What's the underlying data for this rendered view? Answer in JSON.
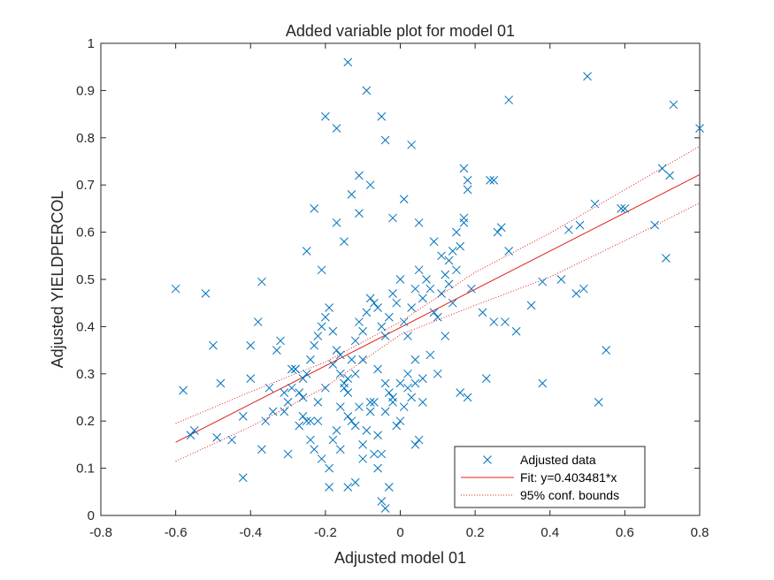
{
  "chart_data": {
    "type": "scatter",
    "title": "Added variable plot for model 01",
    "xlabel": "Adjusted model 01",
    "ylabel": "Adjusted YIELDPERCOL",
    "xlim": [
      -0.8,
      0.8
    ],
    "ylim": [
      0,
      1
    ],
    "xticks": [
      -0.8,
      -0.6,
      -0.4,
      -0.2,
      0,
      0.2,
      0.4,
      0.6,
      0.8
    ],
    "xtick_labels": [
      "-0.8",
      "-0.6",
      "-0.4",
      "-0.2",
      "0",
      "0.2",
      "0.4",
      "0.6",
      "0.8"
    ],
    "yticks": [
      0,
      0.1,
      0.2,
      0.3,
      0.4,
      0.5,
      0.6,
      0.7,
      0.8,
      0.9,
      1
    ],
    "ytick_labels": [
      "0",
      "0.1",
      "0.2",
      "0.3",
      "0.4",
      "0.5",
      "0.6",
      "0.7",
      "0.8",
      "0.9",
      "1"
    ],
    "grid": false,
    "legend_position": "bottom-right",
    "legend": [
      {
        "label": "Adjusted data",
        "style": "marker"
      },
      {
        "label": "Fit: y=0.403481*x",
        "style": "solid"
      },
      {
        "label": "95% conf. bounds",
        "style": "dotted"
      }
    ],
    "colors": {
      "data": "#0072BD",
      "fit": "#E0201B",
      "bounds": "#E0201B",
      "axes": "#262626"
    },
    "fit": {
      "x": [
        -0.6,
        0.8
      ],
      "y": [
        0.155,
        0.722
      ]
    },
    "conf_upper": {
      "x": [
        -0.6,
        -0.4,
        -0.2,
        0,
        0.2,
        0.4,
        0.6,
        0.8
      ],
      "y": [
        0.195,
        0.262,
        0.325,
        0.41,
        0.515,
        0.598,
        0.69,
        0.782
      ]
    },
    "conf_lower": {
      "x": [
        -0.6,
        -0.4,
        -0.2,
        0,
        0.2,
        0.4,
        0.6,
        0.8
      ],
      "y": [
        0.115,
        0.188,
        0.272,
        0.383,
        0.445,
        0.505,
        0.582,
        0.662
      ]
    },
    "series": [
      {
        "name": "Adjusted data",
        "x": [
          -0.6,
          -0.52,
          -0.58,
          -0.55,
          -0.56,
          -0.48,
          -0.45,
          -0.5,
          -0.49,
          -0.42,
          -0.4,
          -0.38,
          -0.37,
          -0.35,
          -0.42,
          -0.4,
          -0.37,
          -0.36,
          -0.33,
          -0.32,
          -0.31,
          -0.3,
          -0.29,
          -0.28,
          -0.27,
          -0.26,
          -0.25,
          -0.24,
          -0.23,
          -0.22,
          -0.21,
          -0.2,
          -0.19,
          -0.18,
          -0.17,
          -0.16,
          -0.15,
          -0.14,
          -0.13,
          -0.12,
          -0.11,
          -0.1,
          -0.09,
          -0.08,
          -0.07,
          -0.06,
          -0.05,
          -0.04,
          -0.03,
          -0.02,
          -0.01,
          0.0,
          0.01,
          0.02,
          0.03,
          0.04,
          0.05,
          0.06,
          0.07,
          0.08,
          0.09,
          0.1,
          0.11,
          0.12,
          0.13,
          0.14,
          0.15,
          0.16,
          0.17,
          0.18,
          -0.14,
          -0.09,
          -0.2,
          -0.17,
          -0.05,
          -0.04,
          0.03,
          -0.11,
          0.5,
          0.73,
          0.8,
          0.29,
          0.7,
          0.72,
          0.17,
          0.24,
          0.25,
          0.18,
          0.28,
          0.22,
          0.25,
          0.35,
          0.38,
          0.45,
          0.48,
          0.47,
          0.49,
          0.52,
          0.53,
          0.55,
          0.59,
          0.6,
          0.68,
          0.71,
          0.29,
          0.27,
          0.26,
          0.19,
          0.23,
          0.38,
          0.43,
          0.31,
          -0.34,
          -0.31,
          -0.29,
          -0.27,
          -0.26,
          -0.25,
          -0.24,
          -0.23,
          -0.22,
          -0.21,
          -0.19,
          -0.18,
          -0.17,
          -0.16,
          -0.15,
          -0.14,
          -0.13,
          -0.12,
          -0.11,
          -0.1,
          -0.09,
          -0.08,
          -0.07,
          -0.06,
          -0.05,
          -0.04,
          -0.03,
          -0.02,
          -0.01,
          0.0,
          0.01,
          0.02,
          0.03,
          0.04,
          0.05,
          0.06,
          -0.3,
          -0.28,
          -0.26,
          -0.24,
          -0.22,
          -0.2,
          -0.18,
          -0.16,
          -0.14,
          -0.12,
          -0.1,
          -0.08,
          -0.06,
          -0.04,
          -0.02,
          0.0,
          0.02,
          0.04,
          -0.19,
          -0.14,
          -0.12,
          -0.05,
          -0.04,
          -0.03,
          -0.07,
          -0.16,
          -0.1,
          -0.06,
          0.04,
          0.06,
          0.08,
          0.1,
          0.12,
          0.14,
          0.16,
          0.18,
          -0.13,
          -0.08,
          -0.02,
          0.01,
          0.05,
          0.09,
          0.11,
          0.13,
          0.15,
          0.17,
          -0.25,
          -0.23,
          -0.21,
          -0.17,
          -0.15,
          -0.11
        ],
        "y": [
          0.48,
          0.47,
          0.265,
          0.18,
          0.17,
          0.28,
          0.16,
          0.36,
          0.165,
          0.08,
          0.36,
          0.41,
          0.495,
          0.27,
          0.21,
          0.29,
          0.14,
          0.2,
          0.35,
          0.37,
          0.22,
          0.24,
          0.27,
          0.31,
          0.26,
          0.25,
          0.3,
          0.33,
          0.36,
          0.38,
          0.4,
          0.42,
          0.44,
          0.39,
          0.35,
          0.3,
          0.28,
          0.26,
          0.33,
          0.37,
          0.41,
          0.39,
          0.43,
          0.46,
          0.45,
          0.44,
          0.4,
          0.38,
          0.42,
          0.47,
          0.45,
          0.5,
          0.41,
          0.38,
          0.44,
          0.48,
          0.52,
          0.46,
          0.5,
          0.48,
          0.43,
          0.42,
          0.47,
          0.51,
          0.54,
          0.56,
          0.6,
          0.57,
          0.62,
          0.69,
          0.96,
          0.9,
          0.845,
          0.82,
          0.845,
          0.795,
          0.785,
          0.72,
          0.93,
          0.87,
          0.82,
          0.88,
          0.735,
          0.72,
          0.735,
          0.71,
          0.71,
          0.71,
          0.41,
          0.43,
          0.41,
          0.445,
          0.495,
          0.605,
          0.615,
          0.47,
          0.48,
          0.66,
          0.24,
          0.35,
          0.65,
          0.65,
          0.615,
          0.545,
          0.56,
          0.61,
          0.6,
          0.48,
          0.29,
          0.28,
          0.5,
          0.39,
          0.22,
          0.26,
          0.31,
          0.19,
          0.21,
          0.2,
          0.16,
          0.14,
          0.2,
          0.12,
          0.1,
          0.16,
          0.18,
          0.23,
          0.27,
          0.21,
          0.2,
          0.19,
          0.23,
          0.15,
          0.18,
          0.22,
          0.24,
          0.17,
          0.13,
          0.22,
          0.26,
          0.24,
          0.19,
          0.2,
          0.23,
          0.27,
          0.25,
          0.28,
          0.16,
          0.24,
          0.13,
          0.31,
          0.29,
          0.2,
          0.24,
          0.27,
          0.32,
          0.34,
          0.29,
          0.3,
          0.33,
          0.24,
          0.31,
          0.28,
          0.25,
          0.28,
          0.3,
          0.33,
          0.06,
          0.06,
          0.07,
          0.03,
          0.015,
          0.06,
          0.13,
          0.14,
          0.12,
          0.1,
          0.15,
          0.29,
          0.34,
          0.3,
          0.38,
          0.45,
          0.26,
          0.25,
          0.68,
          0.7,
          0.63,
          0.67,
          0.62,
          0.58,
          0.55,
          0.49,
          0.52,
          0.63,
          0.56,
          0.65,
          0.52,
          0.62,
          0.58,
          0.64
        ]
      }
    ]
  }
}
